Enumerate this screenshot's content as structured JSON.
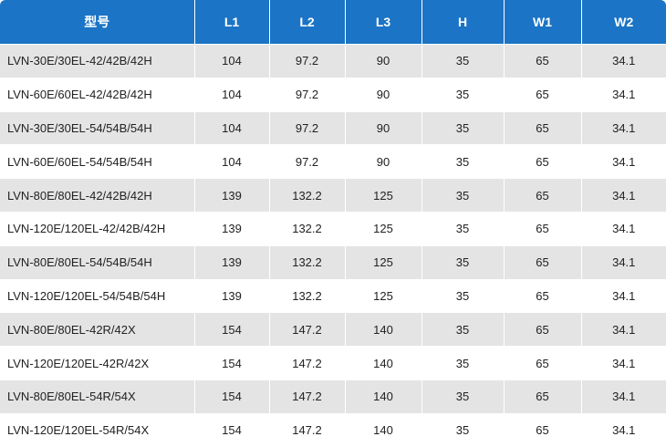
{
  "table": {
    "header": [
      "型号",
      "L1",
      "L2",
      "L3",
      "H",
      "W1",
      "W2"
    ],
    "rows": [
      [
        "LVN-30E/30EL-42/42B/42H",
        "104",
        "97.2",
        "90",
        "35",
        "65",
        "34.1"
      ],
      [
        "LVN-60E/60EL-42/42B/42H",
        "104",
        "97.2",
        "90",
        "35",
        "65",
        "34.1"
      ],
      [
        "LVN-30E/30EL-54/54B/54H",
        "104",
        "97.2",
        "90",
        "35",
        "65",
        "34.1"
      ],
      [
        "LVN-60E/60EL-54/54B/54H",
        "104",
        "97.2",
        "90",
        "35",
        "65",
        "34.1"
      ],
      [
        "LVN-80E/80EL-42/42B/42H",
        "139",
        "132.2",
        "125",
        "35",
        "65",
        "34.1"
      ],
      [
        "LVN-120E/120EL-42/42B/42H",
        "139",
        "132.2",
        "125",
        "35",
        "65",
        "34.1"
      ],
      [
        "LVN-80E/80EL-54/54B/54H",
        "139",
        "132.2",
        "125",
        "35",
        "65",
        "34.1"
      ],
      [
        "LVN-120E/120EL-54/54B/54H",
        "139",
        "132.2",
        "125",
        "35",
        "65",
        "34.1"
      ],
      [
        "LVN-80E/80EL-42R/42X",
        "154",
        "147.2",
        "140",
        "35",
        "65",
        "34.1"
      ],
      [
        "LVN-120E/120EL-42R/42X",
        "154",
        "147.2",
        "140",
        "35",
        "65",
        "34.1"
      ],
      [
        "LVN-80E/80EL-54R/54X",
        "154",
        "147.2",
        "140",
        "35",
        "65",
        "34.1"
      ],
      [
        "LVN-120E/120EL-54R/54X",
        "154",
        "147.2",
        "140",
        "35",
        "65",
        "34.1"
      ]
    ]
  }
}
